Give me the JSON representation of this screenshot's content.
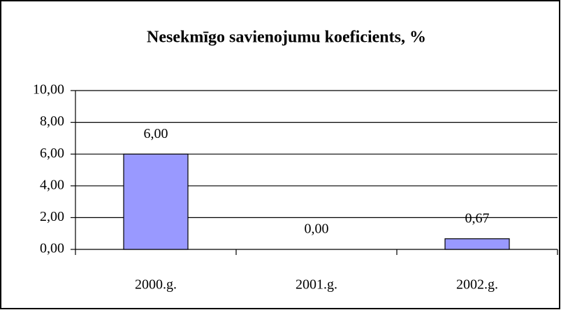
{
  "chart_data": {
    "type": "bar",
    "title": "Nesekmīgo savienojumu koeficients, %",
    "categories": [
      "2000.g.",
      "2001.g.",
      "2002.g."
    ],
    "values": [
      6.0,
      0.0,
      0.67
    ],
    "value_labels": [
      "6,00",
      "0,00",
      "0,67"
    ],
    "color": "#9999ff",
    "ylim": [
      0,
      10
    ],
    "yticks": [
      {
        "value": 0,
        "label": "0,00"
      },
      {
        "value": 2,
        "label": "2,00"
      },
      {
        "value": 4,
        "label": "4,00"
      },
      {
        "value": 6,
        "label": "6,00"
      },
      {
        "value": 8,
        "label": "8,00"
      },
      {
        "value": 10,
        "label": "10,00"
      }
    ],
    "grid": true
  }
}
